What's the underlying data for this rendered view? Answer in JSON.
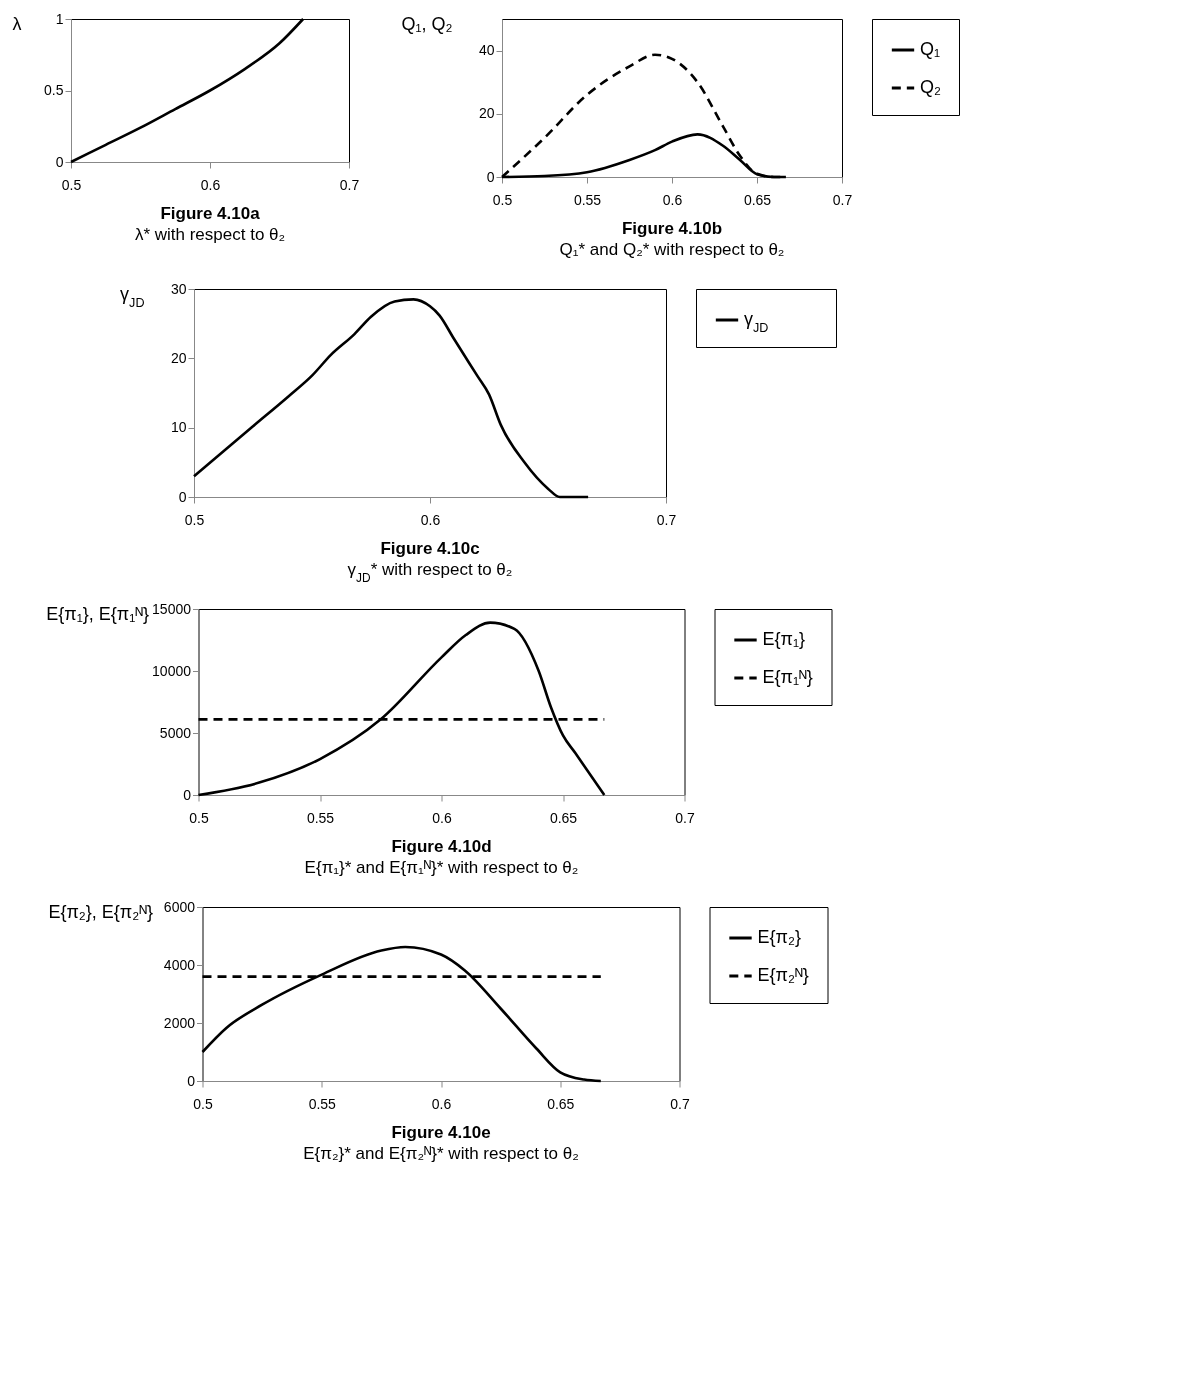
{
  "chart_data": [
    {
      "type": "line",
      "title": "Figure 4.10a",
      "subtitle": "λ* with respect to θ₂",
      "ylabel": "λ",
      "xlim": [
        0.5,
        0.7
      ],
      "xticks": [
        0.5,
        0.6,
        0.7
      ],
      "ylim": [
        0,
        1
      ],
      "yticks": [
        0,
        0.5,
        1
      ],
      "grid": false,
      "x": [
        0.5,
        0.525,
        0.55,
        0.575,
        0.6,
        0.625,
        0.65,
        0.667
      ],
      "series": [
        {
          "color": "#000000",
          "line_style": "solid",
          "values": [
            0,
            0.12,
            0.24,
            0.37,
            0.5,
            0.65,
            0.83,
            1
          ]
        }
      ]
    },
    {
      "type": "line",
      "title": "Figure 4.10b",
      "subtitle": "Q₁* and Q₂* with respect to  θ₂",
      "ylabel": "Q₁, Q₂",
      "xlim": [
        0.5,
        0.7
      ],
      "xticks": [
        0.5,
        0.55,
        0.6,
        0.65,
        0.7
      ],
      "ylim": [
        0,
        50
      ],
      "yticks": [
        0,
        20,
        40
      ],
      "grid": false,
      "legend": "right",
      "x": [
        0.5,
        0.525,
        0.55,
        0.575,
        0.59,
        0.6,
        0.615,
        0.63,
        0.64,
        0.65,
        0.66,
        0.667
      ],
      "series": [
        {
          "name": "Q₁",
          "color": "#000000",
          "line_style": "solid",
          "values": [
            0,
            0.3,
            1.5,
            5.4,
            8.5,
            11.2,
            13.5,
            9.9,
            5.4,
            0.9,
            0,
            0
          ]
        },
        {
          "name": "Q₂",
          "color": "#000000",
          "line_style": "dashed",
          "values": [
            0,
            12.4,
            26,
            35,
            38.7,
            37.4,
            30,
            16,
            6.7,
            1,
            0,
            0
          ]
        }
      ]
    },
    {
      "type": "line",
      "title": "Figure 4.10c",
      "subtitle": "γ$_{JD}$* with respect to  θ₂",
      "ylabel": "γ$_{JD}$",
      "xlim": [
        0.5,
        0.7
      ],
      "xticks": [
        0.5,
        0.6,
        0.7
      ],
      "ylim": [
        0,
        30
      ],
      "yticks": [
        0,
        10,
        20,
        30
      ],
      "grid": false,
      "legend": "right",
      "x": [
        0.5,
        0.5125,
        0.525,
        0.54,
        0.55,
        0.558,
        0.568,
        0.575,
        0.585,
        0.593,
        0.6,
        0.604,
        0.61,
        0.62,
        0.625,
        0.63,
        0.64,
        0.65,
        0.655,
        0.66,
        0.667
      ],
      "series": [
        {
          "name": "γ$_{JD}$",
          "color": "#000000",
          "line_style": "solid",
          "values": [
            3,
            6.6,
            10.2,
            14.5,
            17.5,
            20.5,
            23.5,
            26,
            28.2,
            28.5,
            27.5,
            26.2,
            22.9,
            17.5,
            14.8,
            10.4,
            5,
            1.2,
            0,
            0,
            0
          ]
        }
      ]
    },
    {
      "type": "line",
      "title": "Figure 4.10d",
      "subtitle": "E{π₁}* and E{π₁ᴺ}* with respect to θ₂",
      "ylabel": "E{π₁}, E{π₁ᴺ}",
      "xlim": [
        0.5,
        0.7
      ],
      "xticks": [
        0.5,
        0.55,
        0.6,
        0.65,
        0.7
      ],
      "ylim": [
        0,
        15000
      ],
      "yticks": [
        0,
        5000,
        10000,
        15000
      ],
      "grid": false,
      "legend": "right",
      "series": [
        {
          "name": "E{π₁}",
          "color": "#000000",
          "line_style": "solid",
          "x": [
            0.5,
            0.525,
            0.55,
            0.575,
            0.6,
            0.61,
            0.62,
            0.63,
            0.64,
            0.645,
            0.65,
            0.655,
            0.667
          ],
          "values": [
            0,
            1000,
            2900,
            6100,
            11100,
            12900,
            13900,
            13400,
            10000,
            7100,
            4800,
            3400,
            0
          ]
        },
        {
          "name": "E{π₁ᴺ}",
          "color": "#000000",
          "line_style": "dashed",
          "x": [
            0.5,
            0.667
          ],
          "values": [
            6100,
            6100
          ]
        }
      ]
    },
    {
      "type": "line",
      "title": "Figure 4.10e",
      "subtitle": "E{π₂}* and E{π₂ᴺ}* with respect to θ₂",
      "ylabel": "E{π₂}, E{π₂ᴺ}",
      "xlim": [
        0.5,
        0.7
      ],
      "xticks": [
        0.5,
        0.55,
        0.6,
        0.65,
        0.7
      ],
      "ylim": [
        0,
        6000
      ],
      "yticks": [
        0,
        2000,
        4000,
        6000
      ],
      "grid": false,
      "legend": "right",
      "series": [
        {
          "name": "E{π₂}",
          "color": "#000000",
          "line_style": "solid",
          "x": [
            0.5,
            0.51,
            0.525,
            0.55,
            0.575,
            0.585,
            0.6,
            0.61,
            0.625,
            0.64,
            0.65,
            0.66,
            0.667
          ],
          "values": [
            1000,
            1830,
            2630,
            3670,
            4500,
            4620,
            4360,
            3810,
            2500,
            1120,
            300,
            50,
            0
          ]
        },
        {
          "name": "E{π₂ᴺ}",
          "color": "#000000",
          "line_style": "dashed",
          "x": [
            0.5,
            0.667
          ],
          "values": [
            3600,
            3600
          ]
        }
      ]
    }
  ]
}
